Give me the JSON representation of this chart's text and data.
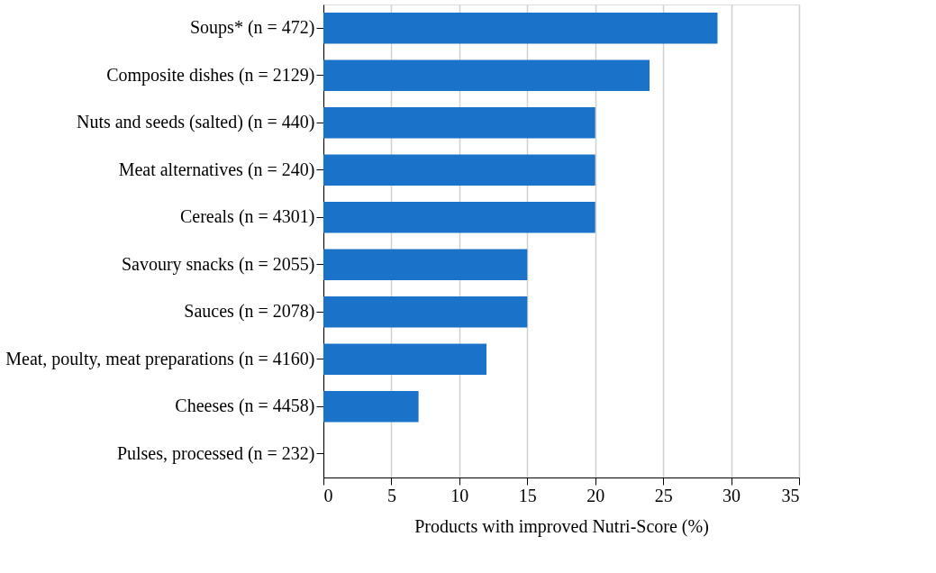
{
  "chart_data": {
    "type": "bar",
    "orientation": "horizontal",
    "xlabel": "Products with improved Nutri-Score (%)",
    "categories": [
      "Soups* (n = 472)",
      "Composite dishes (n = 2129)",
      "Nuts and seeds (salted) (n = 440)",
      "Meat alternatives (n = 240)",
      "Cereals (n = 4301)",
      "Savoury snacks (n = 2055)",
      "Sauces (n = 2078)",
      "Meat, poulty, meat preparations (n = 4160)",
      "Cheeses (n = 4458)",
      "Pulses, processed (n = 232)"
    ],
    "values": [
      29,
      24,
      20,
      20,
      20,
      15,
      15,
      12,
      7,
      0
    ],
    "color": "#1a73c8",
    "xlim": [
      0,
      35
    ],
    "xticks": [
      0,
      5,
      10,
      15,
      20,
      25,
      30,
      35
    ],
    "grid": "x"
  }
}
